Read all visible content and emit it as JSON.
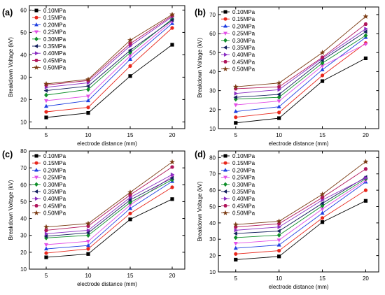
{
  "figure": {
    "background": "#ffffff"
  },
  "series_style": {
    "colors": [
      "#000000",
      "#e8271c",
      "#1f3fe0",
      "#e24fe6",
      "#0f8f2a",
      "#14205e",
      "#8a2ec2",
      "#b0155b",
      "#7a3a12"
    ],
    "markers": [
      "square",
      "circle",
      "triangle-up",
      "triangle-down",
      "diamond",
      "triangle-left",
      "triangle-right",
      "hexagon",
      "star"
    ]
  },
  "chart_data": [
    {
      "panel_label": "(a)",
      "type": "line",
      "xlabel": "electrode distance (mm)",
      "ylabel": "Breakdown Voltage (kV)",
      "x": [
        5,
        10,
        15,
        20
      ],
      "xlim": [
        3,
        21.5
      ],
      "ylim": [
        7,
        62
      ],
      "yticks": [
        10,
        20,
        30,
        40,
        50,
        60
      ],
      "legend_position": "top-left",
      "series": [
        {
          "name": "0.10MPa",
          "values": [
            12.0,
            14.0,
            30.5,
            44.5
          ]
        },
        {
          "name": "0.15MPa",
          "values": [
            14.5,
            16.5,
            35.0,
            52.0
          ]
        },
        {
          "name": "0.20MPa",
          "values": [
            17.0,
            19.5,
            38.0,
            54.0
          ]
        },
        {
          "name": "0.25MPa",
          "values": [
            19.5,
            21.5,
            39.5,
            55.0
          ]
        },
        {
          "name": "0.30MPa",
          "values": [
            22.0,
            24.5,
            41.0,
            56.0
          ]
        },
        {
          "name": "0.35MPa",
          "values": [
            24.0,
            26.0,
            42.0,
            55.5
          ]
        },
        {
          "name": "0.40MPa",
          "values": [
            25.5,
            27.5,
            44.0,
            57.0
          ]
        },
        {
          "name": "0.45MPa",
          "values": [
            26.5,
            28.5,
            45.0,
            57.5
          ]
        },
        {
          "name": "0.50MPa",
          "values": [
            27.0,
            29.0,
            46.5,
            58.0
          ]
        }
      ]
    },
    {
      "panel_label": "(b)",
      "type": "line",
      "xlabel": "electrode distance (mm)",
      "ylabel": "Breakdown Voltage (kV)",
      "x": [
        5,
        10,
        15,
        20
      ],
      "xlim": [
        3,
        21.5
      ],
      "ylim": [
        10,
        74
      ],
      "yticks": [
        10,
        20,
        30,
        40,
        50,
        60,
        70
      ],
      "legend_position": "top-left",
      "series": [
        {
          "name": "0.10MPa",
          "values": [
            13.0,
            15.5,
            35.0,
            47.0
          ]
        },
        {
          "name": "0.15MPa",
          "values": [
            16.0,
            18.5,
            38.0,
            55.0
          ]
        },
        {
          "name": "0.20MPa",
          "values": [
            19.0,
            21.5,
            41.0,
            58.0
          ]
        },
        {
          "name": "0.25MPa",
          "values": [
            22.5,
            24.5,
            43.0,
            54.5
          ]
        },
        {
          "name": "0.30MPa",
          "values": [
            25.5,
            26.5,
            44.5,
            59.0
          ]
        },
        {
          "name": "0.35MPa",
          "values": [
            26.5,
            28.0,
            46.0,
            61.0
          ]
        },
        {
          "name": "0.40MPa",
          "values": [
            28.5,
            30.5,
            47.0,
            62.5
          ]
        },
        {
          "name": "0.45MPa",
          "values": [
            31.0,
            32.0,
            47.5,
            65.0
          ]
        },
        {
          "name": "0.50MPa",
          "values": [
            32.0,
            34.0,
            50.0,
            69.0
          ]
        }
      ]
    },
    {
      "panel_label": "(c)",
      "type": "line",
      "xlabel": "electrode distance (mm)",
      "ylabel": "Breakdown Voltage (kV)",
      "x": [
        5,
        10,
        15,
        20
      ],
      "xlim": [
        3,
        21.5
      ],
      "ylim": [
        10,
        80
      ],
      "yticks": [
        10,
        20,
        30,
        40,
        50,
        60,
        70,
        80
      ],
      "legend_position": "top-left",
      "series": [
        {
          "name": "0.10MPa",
          "values": [
            17.0,
            19.0,
            39.5,
            51.5
          ]
        },
        {
          "name": "0.15MPa",
          "values": [
            19.5,
            22.0,
            43.0,
            58.5
          ]
        },
        {
          "name": "0.20MPa",
          "values": [
            22.0,
            24.0,
            46.0,
            62.0
          ]
        },
        {
          "name": "0.25MPa",
          "values": [
            24.5,
            26.5,
            48.0,
            65.0
          ]
        },
        {
          "name": "0.30MPa",
          "values": [
            28.5,
            30.0,
            49.5,
            63.0
          ]
        },
        {
          "name": "0.35MPa",
          "values": [
            29.5,
            31.5,
            51.0,
            64.0
          ]
        },
        {
          "name": "0.40MPa",
          "values": [
            31.0,
            33.0,
            52.5,
            66.0
          ]
        },
        {
          "name": "0.45MPa",
          "values": [
            33.0,
            35.5,
            54.0,
            70.5
          ]
        },
        {
          "name": "0.50MPa",
          "values": [
            35.0,
            37.0,
            55.5,
            73.5
          ]
        }
      ]
    },
    {
      "panel_label": "(d)",
      "type": "line",
      "xlabel": "electrode distance (mm)",
      "ylabel": "Breakdown Voltage (kV)",
      "x": [
        5,
        10,
        15,
        20
      ],
      "xlim": [
        3,
        21.5
      ],
      "ylim": [
        10,
        84
      ],
      "yticks": [
        10,
        20,
        30,
        40,
        50,
        60,
        70,
        80
      ],
      "legend_position": "top-left",
      "series": [
        {
          "name": "0.10MPa",
          "values": [
            17.5,
            19.5,
            40.5,
            53.5
          ]
        },
        {
          "name": "0.15MPa",
          "values": [
            21.0,
            23.0,
            43.0,
            60.0
          ]
        },
        {
          "name": "0.20MPa",
          "values": [
            24.5,
            26.5,
            46.0,
            65.0
          ]
        },
        {
          "name": "0.25MPa",
          "values": [
            27.5,
            29.5,
            48.5,
            66.0
          ]
        },
        {
          "name": "0.30MPa",
          "values": [
            31.0,
            32.5,
            50.5,
            67.0
          ]
        },
        {
          "name": "0.35MPa",
          "values": [
            33.5,
            35.0,
            52.0,
            68.0
          ]
        },
        {
          "name": "0.40MPa",
          "values": [
            35.5,
            37.5,
            54.0,
            67.5
          ]
        },
        {
          "name": "0.45MPa",
          "values": [
            37.5,
            39.5,
            55.5,
            73.0
          ]
        },
        {
          "name": "0.50MPa",
          "values": [
            39.0,
            41.0,
            57.5,
            77.5
          ]
        }
      ]
    }
  ]
}
